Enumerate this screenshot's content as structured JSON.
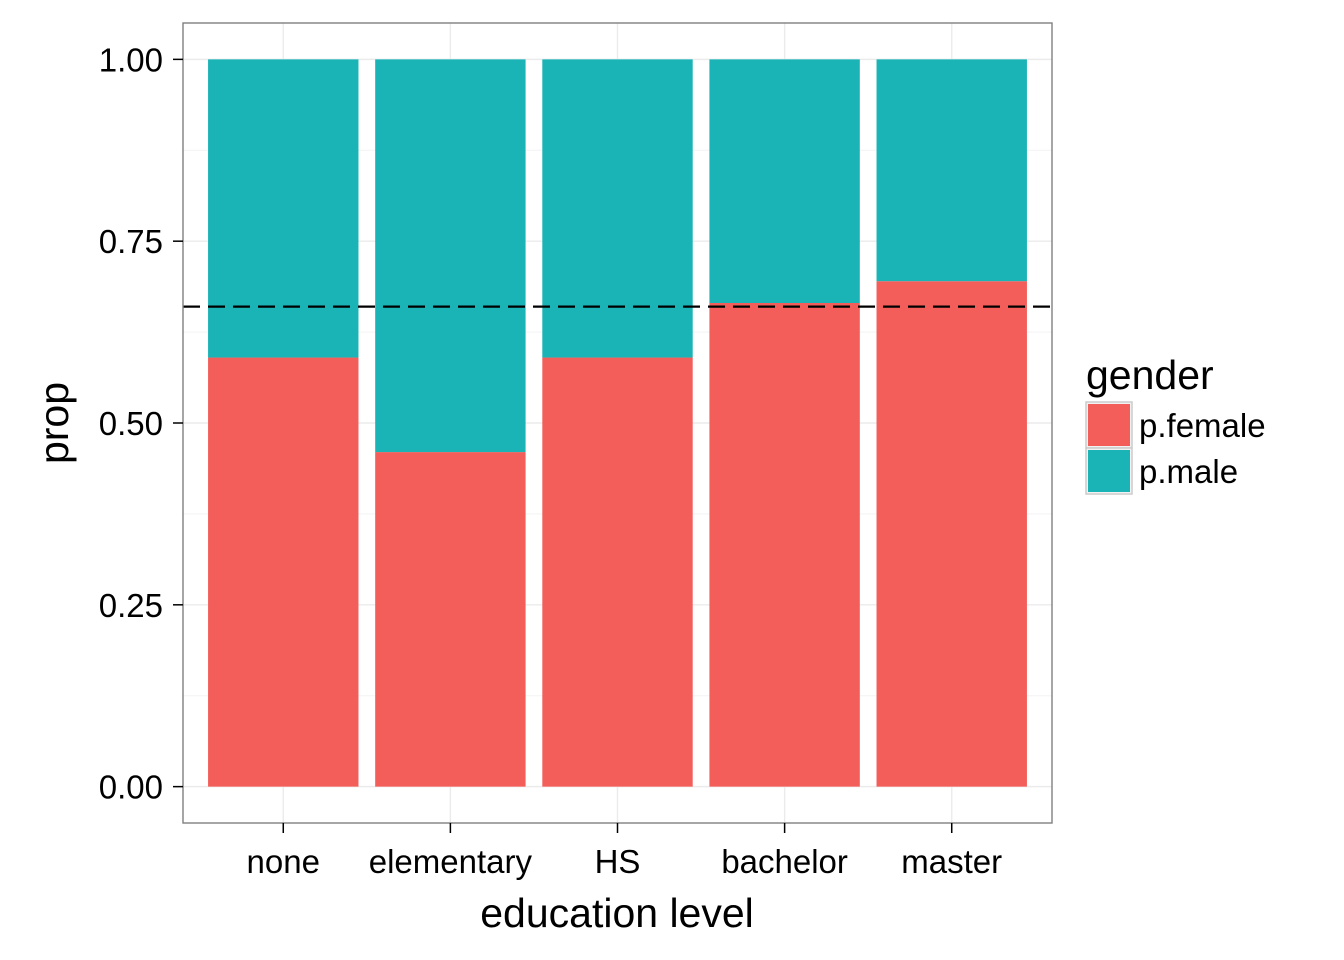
{
  "chart_data": {
    "type": "bar",
    "stacked": true,
    "categories": [
      "none",
      "elementary",
      "HS",
      "bachelor",
      "master"
    ],
    "series": [
      {
        "name": "p.female",
        "values": [
          0.59,
          0.46,
          0.59,
          0.665,
          0.695
        ],
        "color": "#F35E5A"
      },
      {
        "name": "p.male",
        "values": [
          0.41,
          0.54,
          0.41,
          0.335,
          0.305
        ],
        "color": "#1AB4B7"
      }
    ],
    "xlabel": "education level",
    "ylabel": "prop",
    "ylim": [
      -0.05,
      1.05
    ],
    "yticks": [
      "0.00",
      "0.25",
      "0.50",
      "0.75",
      "1.00"
    ],
    "ytick_values": [
      0,
      0.25,
      0.5,
      0.75,
      1.0
    ],
    "reference_line": {
      "y": 0.66,
      "style": "dashed",
      "color": "#000000"
    },
    "legend": {
      "title": "gender",
      "position": "right"
    },
    "grid": true,
    "theme": "bw"
  }
}
